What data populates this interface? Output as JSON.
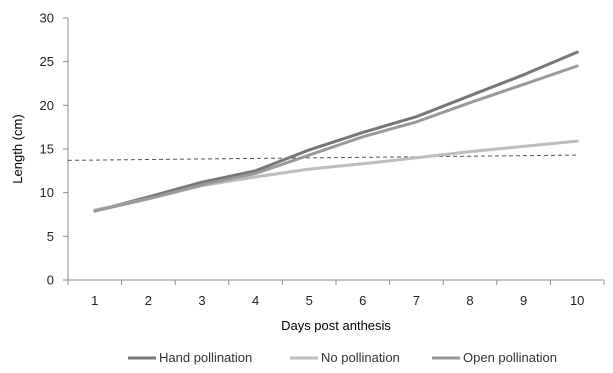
{
  "chart_data": {
    "type": "line",
    "title": "",
    "xlabel": "Days post anthesis",
    "ylabel": "Length (cm)",
    "categories": [
      "1",
      "2",
      "3",
      "4",
      "5",
      "6",
      "7",
      "8",
      "9",
      "10"
    ],
    "ylim": [
      0,
      30
    ],
    "yticks": [
      0,
      5,
      10,
      15,
      20,
      25,
      30
    ],
    "grid": false,
    "legend_position": "bottom",
    "series": [
      {
        "name": "Hand pollination",
        "color": "#777777",
        "values": [
          7.9,
          9.5,
          11.2,
          12.5,
          14.9,
          16.9,
          18.7,
          21.1,
          23.5,
          26.1
        ]
      },
      {
        "name": "No pollination",
        "color": "#bdbdbd",
        "values": [
          8.0,
          9.3,
          10.8,
          11.8,
          12.7,
          13.3,
          14.0,
          14.7,
          15.3,
          15.9
        ]
      },
      {
        "name": "Open pollination",
        "color": "#999999",
        "values": [
          7.9,
          9.3,
          10.9,
          12.2,
          14.3,
          16.4,
          18.1,
          20.3,
          22.4,
          24.5
        ]
      }
    ],
    "reference_line": {
      "style": "dashed",
      "color": "#555555",
      "start": 13.7,
      "end": 14.3
    }
  }
}
